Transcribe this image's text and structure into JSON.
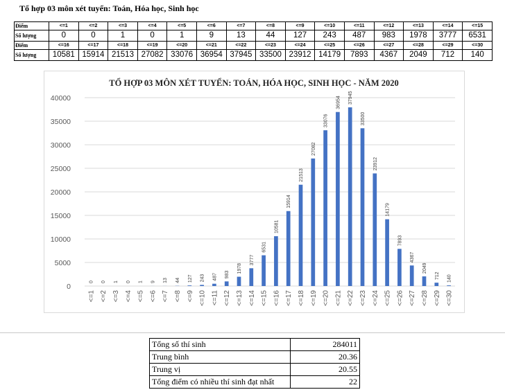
{
  "page_title": "Tổ hợp 03 môn xét tuyển: Toán, Hóa học, Sinh học",
  "score_table": {
    "label_score": "Điểm",
    "label_count": "Số lượng",
    "rows": [
      {
        "scores": [
          "<=1",
          "<=2",
          "<=3",
          "<=4",
          "<=5",
          "<=6",
          "<=7",
          "<=8",
          "<=9",
          "<=10",
          "<=11",
          "<=12",
          "<=13",
          "<=14",
          "<=15"
        ],
        "counts": [
          "0",
          "0",
          "1",
          "0",
          "1",
          "9",
          "13",
          "44",
          "127",
          "243",
          "487",
          "983",
          "1978",
          "3777",
          "6531"
        ]
      },
      {
        "scores": [
          "<=16",
          "<=17",
          "<=18",
          "<=19",
          "<=20",
          "<=21",
          "<=22",
          "<=23",
          "<=24",
          "<=25",
          "<=26",
          "<=27",
          "<=28",
          "<=29",
          "<=30"
        ],
        "counts": [
          "10581",
          "15914",
          "21513",
          "27082",
          "33076",
          "36954",
          "37945",
          "33500",
          "23912",
          "14179",
          "7893",
          "4367",
          "2049",
          "712",
          "140"
        ]
      }
    ]
  },
  "chart_data": {
    "type": "bar",
    "title": "TỔ HỢP 03 MÔN XÉT TUYỂN: TOÁN, HÓA HỌC, SINH HỌC - NĂM 2020",
    "xlabel": "",
    "ylabel": "",
    "categories": [
      "<=1",
      "<=2",
      "<=3",
      "<=4",
      "<=5",
      "<=6",
      "<=7",
      "<=8",
      "<=9",
      "<=10",
      "<=11",
      "<=12",
      "<=13",
      "<=14",
      "<=15",
      "<=16",
      "<=17",
      "<=18",
      "<=19",
      "<=20",
      "<=21",
      "<=22",
      "<=23",
      "<=24",
      "<=25",
      "<=26",
      "<=27",
      "<=28",
      "<=29",
      "<=30"
    ],
    "values": [
      0,
      0,
      1,
      0,
      1,
      9,
      13,
      44,
      127,
      243,
      487,
      983,
      1978,
      3777,
      6531,
      10581,
      15914,
      21513,
      27082,
      33076,
      36954,
      37945,
      33500,
      23912,
      14179,
      7893,
      4367,
      2049,
      712,
      140
    ],
    "ylim": [
      0,
      40000
    ],
    "yticks": [
      0,
      5000,
      10000,
      15000,
      20000,
      25000,
      30000,
      35000,
      40000
    ],
    "grid": true,
    "data_labels": true,
    "legend": "none",
    "bar_color": "#4472c4"
  },
  "stats": [
    {
      "label": "Tổng số thí sinh",
      "value": "284011"
    },
    {
      "label": "Trung bình",
      "value": "20.36"
    },
    {
      "label": "Trung vị",
      "value": "20.55"
    },
    {
      "label": "Tổng điểm có nhiều thí sinh đạt nhất",
      "value": "22"
    }
  ]
}
